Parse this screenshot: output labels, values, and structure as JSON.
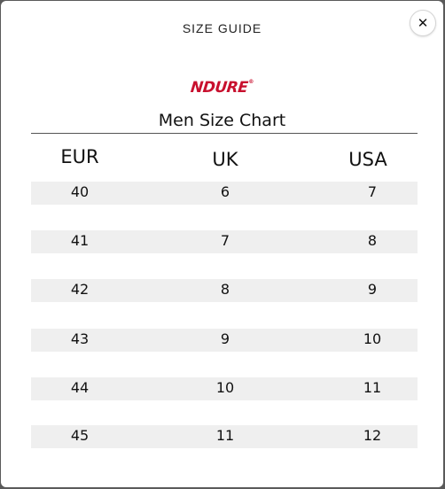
{
  "modal": {
    "title": "SIZE GUIDE",
    "close_label": "✕"
  },
  "brand": {
    "logo_text": "NDURE",
    "logo_mark": "®",
    "color": "#c8102e"
  },
  "chart": {
    "title": "Men Size Chart",
    "headers": [
      "EUR",
      "UK",
      "USA"
    ],
    "rows": [
      [
        "40",
        "6",
        "7"
      ],
      [
        "41",
        "7",
        "8"
      ],
      [
        "42",
        "8",
        "9"
      ],
      [
        "43",
        "9",
        "10"
      ],
      [
        "44",
        "10",
        "11"
      ],
      [
        "45",
        "11",
        "12"
      ]
    ]
  },
  "colors": {
    "row_background": "#efefef",
    "divider": "#555555"
  }
}
